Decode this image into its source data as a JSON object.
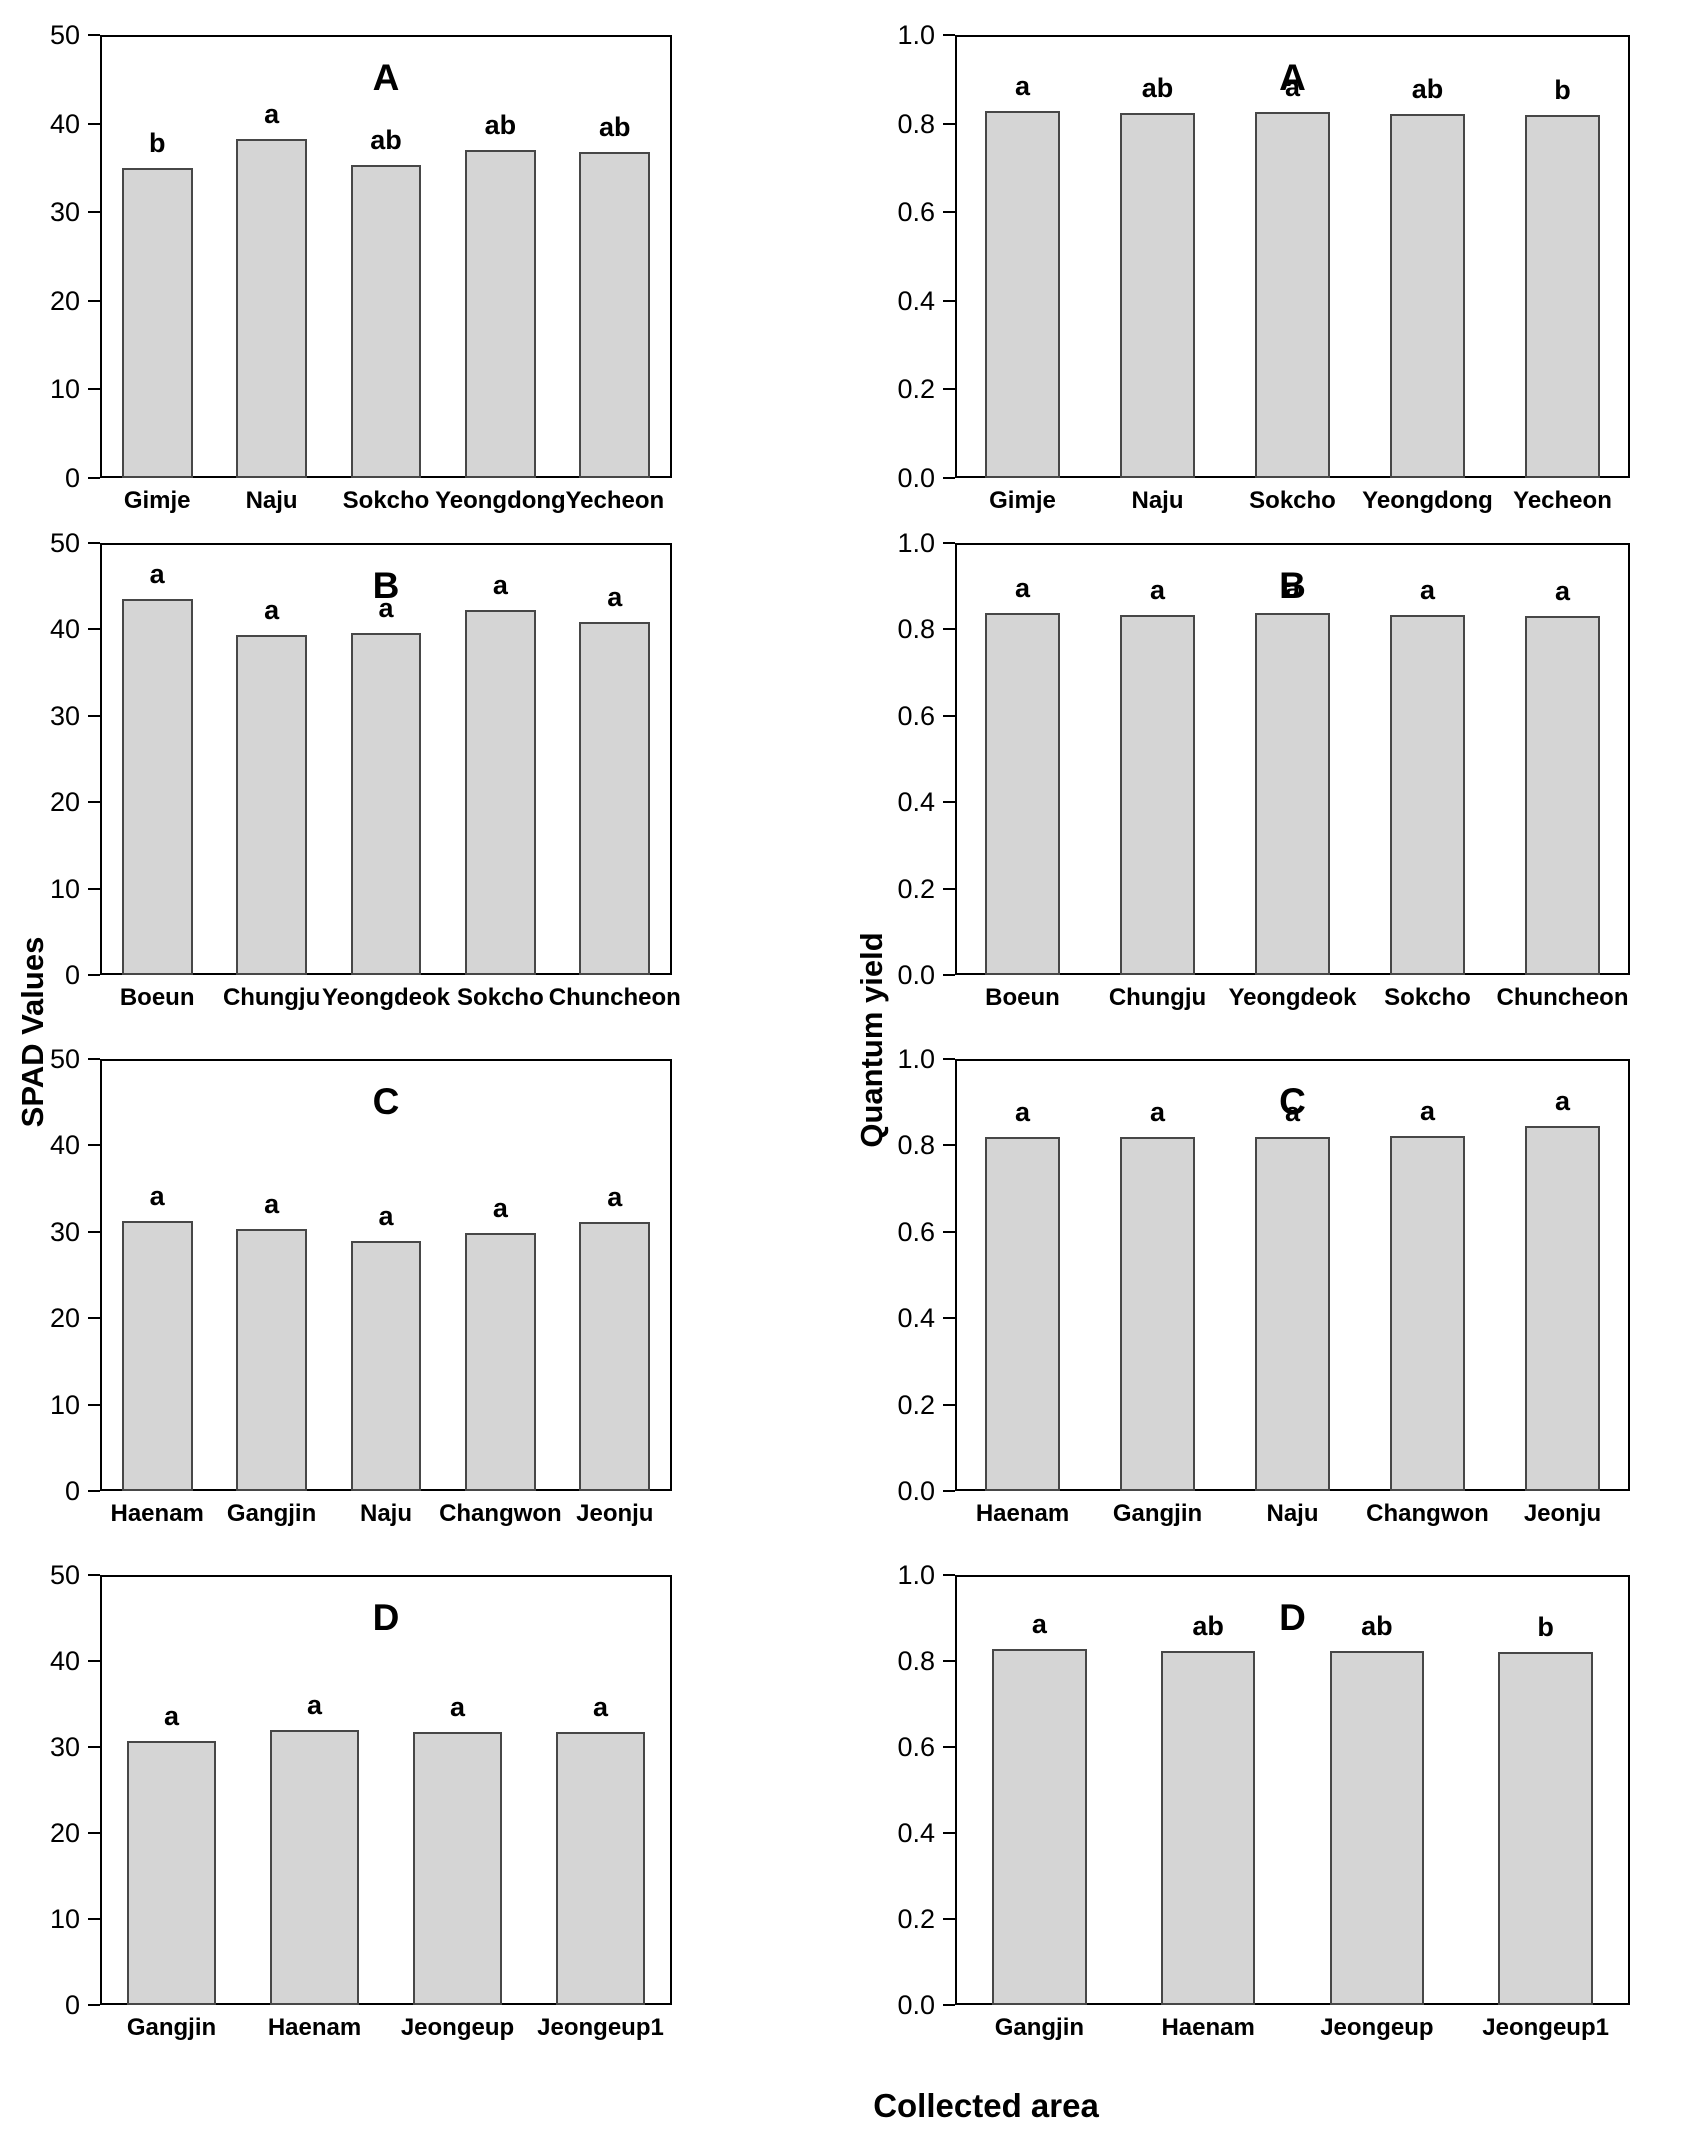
{
  "figure": {
    "left_axis_title": "SPAD Values",
    "right_axis_title": "Quantum yield",
    "x_axis_title": "Collected area",
    "bar_fill": "#d5d5d5",
    "bar_border": "#474747",
    "axis_color": "#000000"
  },
  "chart_data": [
    {
      "type": "bar",
      "panel": "A",
      "row": 0,
      "col": 0,
      "measure": "SPAD Values",
      "ylim": [
        0,
        50
      ],
      "yticks": [
        "0",
        "10",
        "20",
        "30",
        "40",
        "50"
      ],
      "categories": [
        "Gimje",
        "Naju",
        "Sokcho",
        "Yeongdong",
        "Yecheon"
      ],
      "values": [
        35.0,
        38.3,
        35.3,
        37.0,
        36.8
      ],
      "sig_letters": [
        "b",
        "a",
        "ab",
        "ab",
        "ab"
      ],
      "grid": false,
      "legend": "none"
    },
    {
      "type": "bar",
      "panel": "A",
      "row": 0,
      "col": 1,
      "measure": "Quantum yield",
      "ylim": [
        0.0,
        1.0
      ],
      "yticks": [
        "0.0",
        "0.2",
        "0.4",
        "0.6",
        "0.8",
        "1.0"
      ],
      "categories": [
        "Gimje",
        "Naju",
        "Sokcho",
        "Yeongdong",
        "Yecheon"
      ],
      "values": [
        0.828,
        0.824,
        0.827,
        0.822,
        0.819
      ],
      "sig_letters": [
        "a",
        "ab",
        "a",
        "ab",
        "b"
      ],
      "grid": false,
      "legend": "none"
    },
    {
      "type": "bar",
      "panel": "B",
      "row": 1,
      "col": 0,
      "measure": "SPAD Values",
      "ylim": [
        0,
        50
      ],
      "yticks": [
        "0",
        "10",
        "20",
        "30",
        "40",
        "50"
      ],
      "categories": [
        "Boeun",
        "Chungju",
        "Yeongdeok",
        "Sokcho",
        "Chuncheon"
      ],
      "values": [
        43.5,
        39.3,
        39.6,
        42.2,
        40.9
      ],
      "sig_letters": [
        "a",
        "a",
        "a",
        "a",
        "a"
      ],
      "grid": false,
      "legend": "none"
    },
    {
      "type": "bar",
      "panel": "B",
      "row": 1,
      "col": 1,
      "measure": "Quantum yield",
      "ylim": [
        0.0,
        1.0
      ],
      "yticks": [
        "0.0",
        "0.2",
        "0.4",
        "0.6",
        "0.8",
        "1.0"
      ],
      "categories": [
        "Boeun",
        "Chungju",
        "Yeongdeok",
        "Sokcho",
        "Chuncheon"
      ],
      "values": [
        0.837,
        0.834,
        0.837,
        0.834,
        0.831
      ],
      "sig_letters": [
        "a",
        "a",
        "a",
        "a",
        "a"
      ],
      "grid": false,
      "legend": "none"
    },
    {
      "type": "bar",
      "panel": "C",
      "row": 2,
      "col": 0,
      "measure": "SPAD Values",
      "ylim": [
        0,
        50
      ],
      "yticks": [
        "0",
        "10",
        "20",
        "30",
        "40",
        "50"
      ],
      "categories": [
        "Haenam",
        "Gangjin",
        "Naju",
        "Changwon",
        "Jeonju"
      ],
      "values": [
        31.3,
        30.3,
        28.9,
        29.9,
        31.1
      ],
      "sig_letters": [
        "a",
        "a",
        "a",
        "a",
        "a"
      ],
      "grid": false,
      "legend": "none"
    },
    {
      "type": "bar",
      "panel": "C",
      "row": 2,
      "col": 1,
      "measure": "Quantum yield",
      "ylim": [
        0.0,
        1.0
      ],
      "yticks": [
        "0.0",
        "0.2",
        "0.4",
        "0.6",
        "0.8",
        "1.0"
      ],
      "categories": [
        "Haenam",
        "Gangjin",
        "Naju",
        "Changwon",
        "Jeonju"
      ],
      "values": [
        0.82,
        0.82,
        0.82,
        0.822,
        0.845
      ],
      "sig_letters": [
        "a",
        "a",
        "a",
        "a",
        "a"
      ],
      "grid": false,
      "legend": "none"
    },
    {
      "type": "bar",
      "panel": "D",
      "row": 3,
      "col": 0,
      "measure": "SPAD Values",
      "ylim": [
        0,
        50
      ],
      "yticks": [
        "0",
        "10",
        "20",
        "30",
        "40",
        "50"
      ],
      "categories": [
        "Gangjin",
        "Haenam",
        "Jeongeup",
        "Jeongeup1"
      ],
      "values": [
        30.7,
        32.0,
        31.7,
        31.7
      ],
      "sig_letters": [
        "a",
        "a",
        "a",
        "a"
      ],
      "grid": false,
      "legend": "none"
    },
    {
      "type": "bar",
      "panel": "D",
      "row": 3,
      "col": 1,
      "measure": "Quantum yield",
      "ylim": [
        0.0,
        1.0
      ],
      "yticks": [
        "0.0",
        "0.2",
        "0.4",
        "0.6",
        "0.8",
        "1.0"
      ],
      "categories": [
        "Gangjin",
        "Haenam",
        "Jeongeup",
        "Jeongeup1"
      ],
      "values": [
        0.827,
        0.823,
        0.823,
        0.82
      ],
      "sig_letters": [
        "a",
        "ab",
        "ab",
        "b"
      ],
      "grid": false,
      "legend": "none"
    }
  ]
}
